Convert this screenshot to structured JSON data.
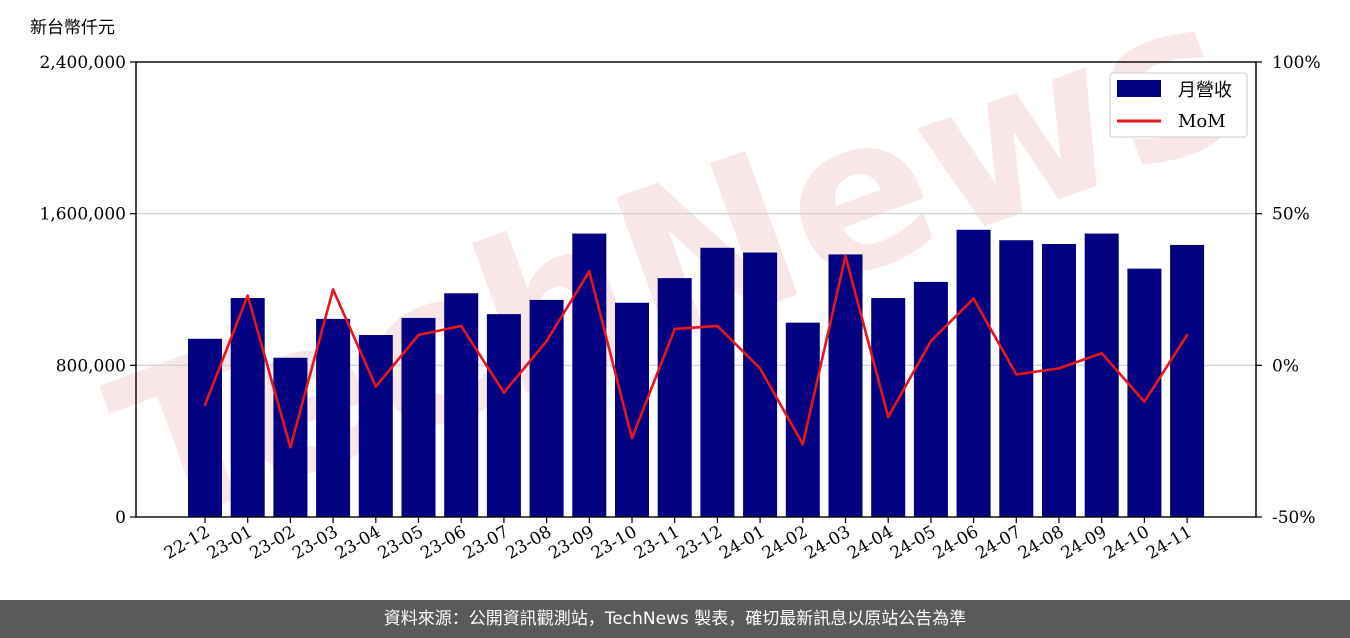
{
  "watermark": "TechNews",
  "footer": {
    "source_text": "資料來源：公開資訊觀測站，TechNews 製表，確切最新訊息以原站公告為準"
  },
  "colors": {
    "bar": "#000080",
    "line": "#e8151b",
    "grid": "#cccccc",
    "footer_bg": "#5a5a5a"
  },
  "chart_data": {
    "type": "bar",
    "unit_label": "新台幣仟元",
    "categories": [
      "22-12",
      "23-01",
      "23-02",
      "23-03",
      "23-04",
      "23-05",
      "23-06",
      "23-07",
      "23-08",
      "23-09",
      "23-10",
      "23-11",
      "23-12",
      "24-01",
      "24-02",
      "24-03",
      "24-04",
      "24-05",
      "24-06",
      "24-07",
      "24-08",
      "24-09",
      "24-10",
      "24-11"
    ],
    "series": [
      {
        "name": "月營收",
        "type": "bar",
        "axis": "left",
        "values": [
          940000,
          1155000,
          840000,
          1045000,
          960000,
          1050000,
          1180000,
          1070000,
          1145000,
          1495000,
          1130000,
          1260000,
          1420000,
          1395000,
          1025000,
          1385000,
          1155000,
          1240000,
          1515000,
          1460000,
          1440000,
          1495000,
          1310000,
          1435000
        ]
      },
      {
        "name": "MoM",
        "type": "line",
        "axis": "right",
        "values": [
          -13,
          23,
          -27,
          25,
          -7,
          10,
          13,
          -9,
          8,
          31,
          -24,
          12,
          13,
          -1,
          -26,
          36,
          -17,
          8,
          22,
          -3,
          -1,
          4,
          -12,
          10
        ]
      }
    ],
    "y_left": {
      "range": [
        0,
        2400000
      ],
      "ticks": [
        0,
        800000,
        1600000,
        2400000
      ],
      "tick_labels": [
        "0",
        "800,000",
        "1,600,000",
        "2,400,000"
      ]
    },
    "y_right": {
      "range": [
        -50,
        100
      ],
      "ticks": [
        -50,
        0,
        50,
        100
      ],
      "tick_labels": [
        "-50%",
        "0%",
        "50%",
        "100%"
      ]
    },
    "grid": "horizontal",
    "legend_position": "top-right"
  }
}
